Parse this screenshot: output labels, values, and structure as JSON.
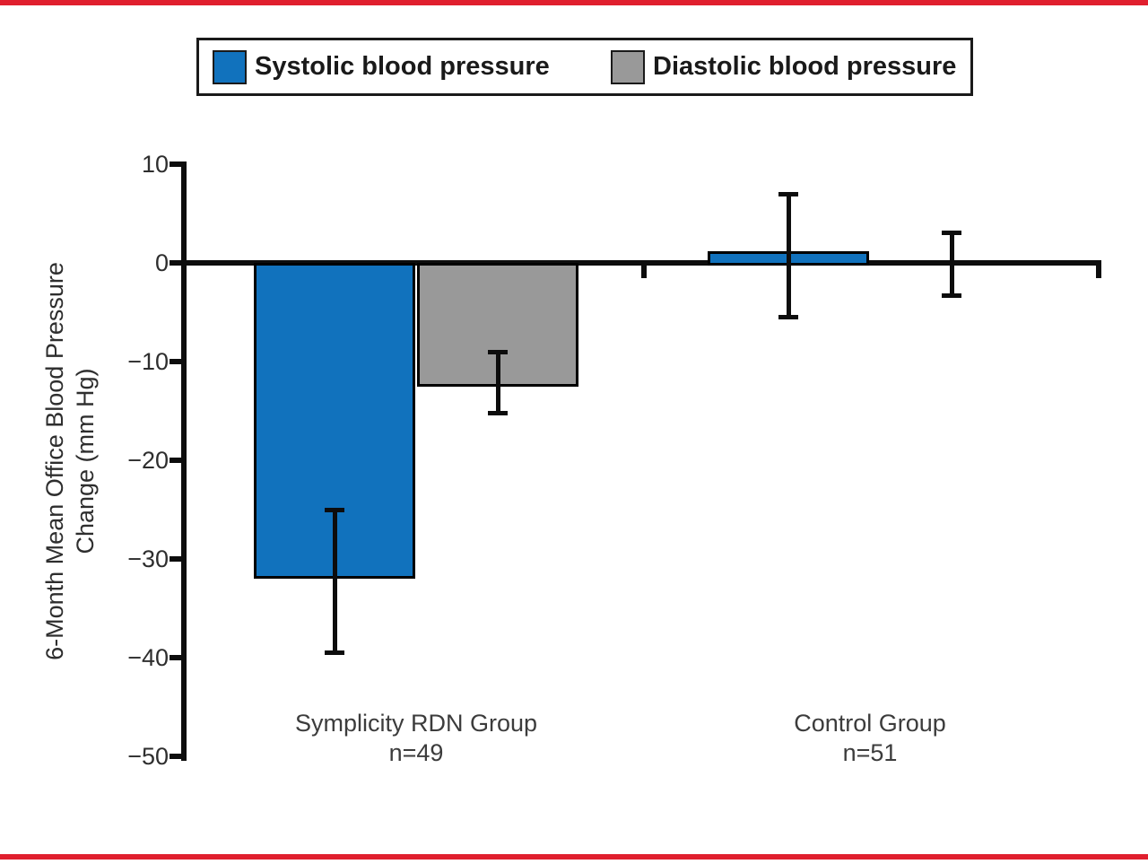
{
  "figure": {
    "accent_rule_color": "#E01F2E",
    "background": "#ffffff"
  },
  "legend": {
    "items": [
      {
        "label": "Systolic blood pressure",
        "color": "#1172BD"
      },
      {
        "label": "Diastolic blood pressure",
        "color": "#999999"
      }
    ]
  },
  "chart_data": {
    "type": "bar",
    "title": "",
    "xlabel": "",
    "ylabel": "6-Month Mean Office Blood Pressure Change (mm Hg)",
    "ylabel_lines": [
      "6-Month Mean Office Blood Pressure",
      "Change (mm Hg)"
    ],
    "ylim": [
      -50,
      10
    ],
    "yticks": [
      10,
      0,
      -10,
      -20,
      -30,
      -40,
      -50
    ],
    "ytick_labels": [
      "10",
      "0",
      "−10",
      "−20",
      "−30",
      "−40",
      "−50"
    ],
    "grid": false,
    "legend_position": "top",
    "error_bar_style": "capped",
    "series_names": [
      "Systolic blood pressure",
      "Diastolic blood pressure"
    ],
    "colors": {
      "systolic": "#1172BD",
      "diastolic": "#999999"
    },
    "groups": [
      {
        "label": "Symplicity RDN Group",
        "n_label": "n=49",
        "bars": [
          {
            "series": "systolic",
            "value": -32,
            "ci": [
              -39.5,
              -25
            ]
          },
          {
            "series": "diastolic",
            "value": -12.5,
            "ci": [
              -15.3,
              -9
            ]
          }
        ]
      },
      {
        "label": "Control Group",
        "n_label": "n=51",
        "bars": [
          {
            "series": "systolic",
            "value": 1.2,
            "ci": [
              -5.5,
              7
            ]
          },
          {
            "series": "diastolic",
            "value": 0,
            "ci": [
              -3.4,
              3.1
            ]
          }
        ]
      }
    ]
  }
}
